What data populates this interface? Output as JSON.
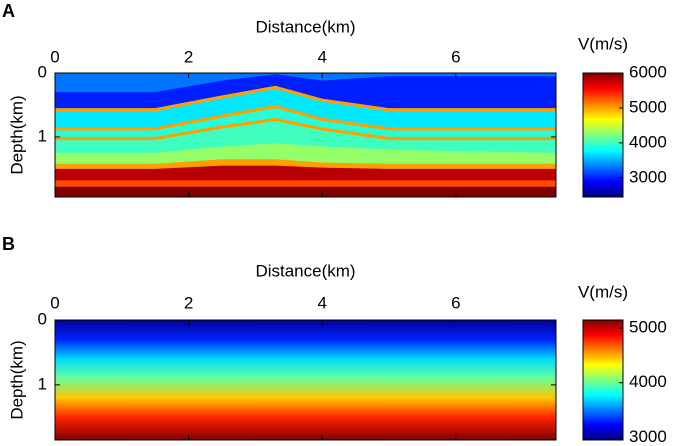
{
  "chart_data": [
    {
      "type": "layers",
      "panel_label": "A",
      "xlabel": "Distance(km)",
      "ylabel": "Depth(km)",
      "colorbar_label": "V(m/s)",
      "xlim": [
        0,
        7.5
      ],
      "ylim": [
        0,
        1.94
      ],
      "y_inverted": true,
      "xticks": [
        0,
        2,
        4,
        6
      ],
      "yticks": [
        0,
        1
      ],
      "clim": [
        2450,
        6000
      ],
      "cticks": [
        3000,
        4000,
        5000,
        6000
      ],
      "colormap": "jet",
      "x": [
        0,
        1.5,
        2.5,
        3.3,
        4,
        5,
        7.5
      ],
      "layers": [
        {
          "value": 3300,
          "top": [
            0,
            0,
            0,
            0,
            0,
            0,
            0
          ]
        },
        {
          "value": 3000,
          "top": [
            0.3,
            0.3,
            0.12,
            0.02,
            0.12,
            0.05,
            0.05
          ]
        },
        {
          "value": 5000,
          "top": [
            0.55,
            0.55,
            0.35,
            0.2,
            0.4,
            0.55,
            0.55
          ]
        },
        {
          "value": 3700,
          "top": [
            0.6,
            0.6,
            0.4,
            0.25,
            0.45,
            0.6,
            0.6
          ]
        },
        {
          "value": 5000,
          "top": [
            0.85,
            0.85,
            0.65,
            0.5,
            0.7,
            0.85,
            0.85
          ]
        },
        {
          "value": 3900,
          "top": [
            0.9,
            0.9,
            0.7,
            0.55,
            0.75,
            0.9,
            0.9
          ]
        },
        {
          "value": 5000,
          "top": [
            1.0,
            1.0,
            0.82,
            0.7,
            0.85,
            1.0,
            1.0
          ]
        },
        {
          "value": 4000,
          "top": [
            1.05,
            1.05,
            0.87,
            0.75,
            0.9,
            1.05,
            1.05
          ]
        },
        {
          "value": 4300,
          "top": [
            1.25,
            1.25,
            1.15,
            1.1,
            1.15,
            1.2,
            1.25
          ]
        },
        {
          "value": 5000,
          "top": [
            1.42,
            1.42,
            1.35,
            1.35,
            1.4,
            1.42,
            1.42
          ]
        },
        {
          "value": 5800,
          "top": [
            1.5,
            1.5,
            1.45,
            1.45,
            1.48,
            1.5,
            1.5
          ]
        },
        {
          "value": 5300,
          "top": [
            1.68,
            1.68,
            1.68,
            1.68,
            1.68,
            1.68,
            1.68
          ]
        },
        {
          "value": 6000,
          "top": [
            1.78,
            1.78,
            1.78,
            1.78,
            1.78,
            1.78,
            1.78
          ]
        }
      ]
    },
    {
      "type": "gradient",
      "panel_label": "B",
      "xlabel": "Distance(km)",
      "ylabel": "Depth(km)",
      "colorbar_label": "V(m/s)",
      "xlim": [
        0,
        7.5
      ],
      "ylim": [
        0,
        1.85
      ],
      "y_inverted": true,
      "xticks": [
        0,
        2,
        4,
        6
      ],
      "yticks": [
        0,
        1
      ],
      "clim": [
        2950,
        5150
      ],
      "cticks": [
        3000,
        4000,
        5000
      ],
      "colormap": "jet",
      "depths": [
        0,
        0.3,
        0.6,
        0.9,
        1.2,
        1.5,
        1.85
      ],
      "values": [
        3000,
        3300,
        3700,
        4000,
        4450,
        4800,
        5150
      ]
    }
  ]
}
